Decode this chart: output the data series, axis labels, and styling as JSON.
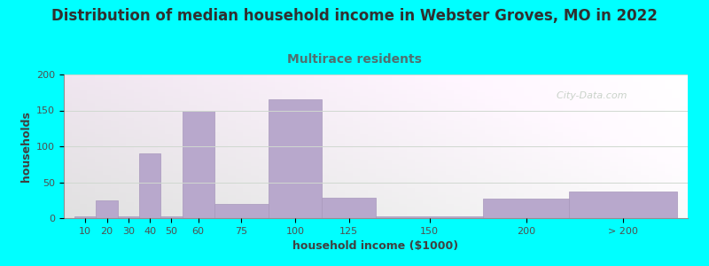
{
  "title": "Distribution of median household income in Webster Groves, MO in 2022",
  "subtitle": "Multirace residents",
  "xlabel": "household income ($1000)",
  "ylabel": "households",
  "background_color": "#00FFFF",
  "bar_color": "#b8a8cc",
  "bar_edge_color": "#a898bc",
  "watermark": "  City-Data.com",
  "categories": [
    "10",
    "20",
    "30",
    "40",
    "50",
    "60",
    "75",
    "100",
    "125",
    "150",
    "200",
    "> 200"
  ],
  "values": [
    3,
    25,
    2,
    90,
    2,
    150,
    20,
    165,
    28,
    2,
    27,
    37
  ],
  "bar_lefts": [
    10,
    20,
    30,
    40,
    50,
    60,
    75,
    100,
    125,
    150,
    200,
    240
  ],
  "actual_widths": [
    10,
    10,
    10,
    10,
    10,
    15,
    25,
    25,
    25,
    50,
    40,
    50
  ],
  "tick_centers": [
    15,
    25,
    35,
    45,
    55,
    67.5,
    87.5,
    112.5,
    137.5,
    175,
    220,
    265
  ],
  "xlim": [
    5,
    295
  ],
  "ylim": [
    0,
    200
  ],
  "yticks": [
    0,
    50,
    100,
    150,
    200
  ],
  "title_fontsize": 12,
  "subtitle_fontsize": 10,
  "subtitle_color": "#507070",
  "axis_label_fontsize": 9,
  "tick_fontsize": 8,
  "title_color": "#303030",
  "grid_color": "#d0d8d0",
  "watermark_color": "#c0ccc0"
}
